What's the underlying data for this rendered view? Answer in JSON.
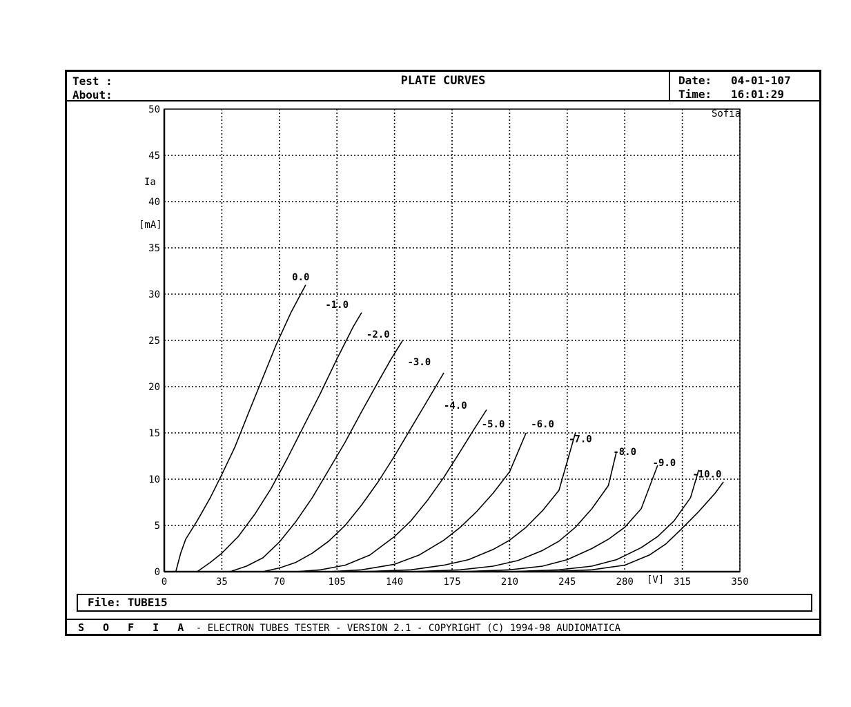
{
  "header": {
    "test_label": "Test :",
    "about_label": "About:",
    "title": "PLATE CURVES",
    "date_label": "Date:",
    "date_value": "04-01-107",
    "time_label": "Time:",
    "time_value": "16:01:29"
  },
  "file": {
    "label": "File: TUBE15"
  },
  "footer": {
    "brand": "S O F I A",
    "text": " -  ELECTRON TUBES TESTER  -  VERSION 2.1  -  COPYRIGHT (C) 1994-98 AUDIOMATICA"
  },
  "chart_data": {
    "type": "line",
    "title": "PLATE CURVES",
    "watermark": "Sofia",
    "xlabel": "[V]",
    "ylabel": "Ia",
    "ylabel_unit": "[mA]",
    "xlim": [
      0,
      350
    ],
    "ylim": [
      0,
      50
    ],
    "x_ticks": [
      0,
      35,
      70,
      105,
      140,
      175,
      210,
      245,
      280,
      315,
      350
    ],
    "y_ticks": [
      0,
      5,
      10,
      15,
      20,
      25,
      30,
      35,
      40,
      45,
      50
    ],
    "grid": true,
    "series": [
      {
        "name": "0.0",
        "x": [
          7,
          10,
          13,
          20,
          28,
          35,
          43,
          52,
          60,
          68,
          77,
          86
        ],
        "y": [
          0,
          2,
          3.5,
          5.5,
          8,
          10.5,
          13.5,
          17.5,
          21,
          24.5,
          28,
          31
        ]
      },
      {
        "name": "-1.0",
        "x": [
          20,
          28,
          35,
          45,
          55,
          65,
          75,
          85,
          95,
          105,
          115,
          120
        ],
        "y": [
          0,
          1,
          2,
          3.8,
          6.2,
          9,
          12.3,
          15.8,
          19.3,
          23,
          26.5,
          28
        ]
      },
      {
        "name": "-2.0",
        "x": [
          40,
          50,
          60,
          70,
          80,
          90,
          100,
          110,
          120,
          130,
          138,
          145
        ],
        "y": [
          0,
          0.6,
          1.5,
          3.2,
          5.4,
          8,
          11,
          14,
          17.3,
          20.5,
          23,
          25
        ]
      },
      {
        "name": "-3.0",
        "x": [
          60,
          70,
          80,
          90,
          100,
          110,
          120,
          130,
          140,
          150,
          160,
          170
        ],
        "y": [
          0,
          0.4,
          1,
          2,
          3.3,
          5,
          7.2,
          9.7,
          12.5,
          15.5,
          18.5,
          21.5
        ]
      },
      {
        "name": "-4.0",
        "x": [
          80,
          95,
          110,
          125,
          140,
          150,
          160,
          170,
          180,
          188,
          196
        ],
        "y": [
          0,
          0.2,
          0.7,
          1.8,
          3.8,
          5.5,
          7.7,
          10.2,
          13,
          15.3,
          17.5
        ]
      },
      {
        "name": "-5.0",
        "x": [
          100,
          120,
          140,
          155,
          170,
          180,
          190,
          200,
          210,
          220
        ],
        "y": [
          0,
          0.2,
          0.8,
          1.8,
          3.4,
          4.8,
          6.5,
          8.5,
          10.8,
          15
        ]
      },
      {
        "name": "-6.0",
        "x": [
          120,
          150,
          170,
          185,
          200,
          210,
          220,
          230,
          240,
          250
        ],
        "y": [
          0,
          0.2,
          0.7,
          1.3,
          2.4,
          3.4,
          4.8,
          6.6,
          8.8,
          15
        ]
      },
      {
        "name": "-7.0",
        "x": [
          150,
          180,
          200,
          215,
          230,
          240,
          250,
          260,
          270,
          275
        ],
        "y": [
          0,
          0.2,
          0.6,
          1.2,
          2.3,
          3.3,
          4.8,
          6.8,
          9.3,
          13
        ]
      },
      {
        "name": "-8.0",
        "x": [
          180,
          210,
          230,
          245,
          260,
          270,
          280,
          290,
          300
        ],
        "y": [
          0,
          0.2,
          0.6,
          1.3,
          2.5,
          3.5,
          4.8,
          6.8,
          11.5
        ]
      },
      {
        "name": "-9.0",
        "x": [
          210,
          240,
          260,
          275,
          290,
          300,
          310,
          320,
          325
        ],
        "y": [
          0,
          0.2,
          0.6,
          1.3,
          2.6,
          3.8,
          5.5,
          8,
          11
        ]
      },
      {
        "name": "-10.0",
        "x": [
          230,
          260,
          280,
          295,
          305,
          315,
          325,
          335,
          340
        ],
        "y": [
          0,
          0.2,
          0.7,
          1.8,
          3,
          4.7,
          6.5,
          8.5,
          9.7
        ]
      }
    ],
    "labels": [
      {
        "text": "0.0",
        "x": 83,
        "y": 31.5
      },
      {
        "text": "-1.0",
        "x": 105,
        "y": 28.5
      },
      {
        "text": "-2.0",
        "x": 130,
        "y": 25.3
      },
      {
        "text": "-3.0",
        "x": 155,
        "y": 22.3
      },
      {
        "text": "-4.0",
        "x": 177,
        "y": 17.6
      },
      {
        "text": "-5.0",
        "x": 200,
        "y": 15.6
      },
      {
        "text": "-6.0",
        "x": 230,
        "y": 15.6
      },
      {
        "text": "-7.0",
        "x": 253,
        "y": 14
      },
      {
        "text": "-8.0",
        "x": 280,
        "y": 12.6
      },
      {
        "text": "-9.0",
        "x": 304,
        "y": 11.4
      },
      {
        "text": "-10.0",
        "x": 330,
        "y": 10.2
      }
    ],
    "line_color": "#000000",
    "grid_color": "#000000"
  }
}
